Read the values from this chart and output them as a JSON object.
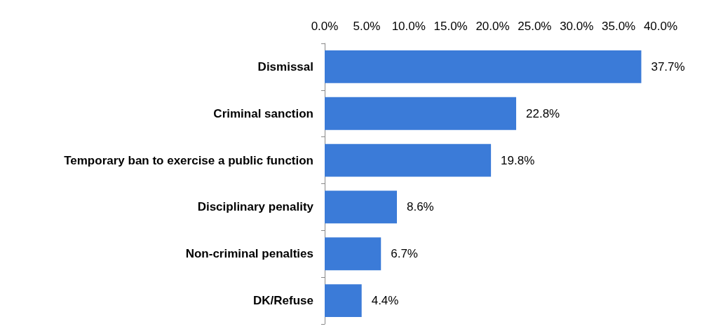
{
  "chart_data": {
    "type": "bar",
    "orientation": "horizontal",
    "categories": [
      "Dismissal",
      "Criminal sanction",
      "Temporary ban to exercise a public function",
      "Disciplinary penality",
      "Non-criminal penalties",
      "DK/Refuse"
    ],
    "values": [
      37.7,
      22.8,
      19.8,
      8.6,
      6.7,
      4.4
    ],
    "value_labels": [
      "37.7%",
      "22.8%",
      "19.8%",
      "8.6%",
      "6.7%",
      "4.4%"
    ],
    "color": "#3b7bd8",
    "xlim": [
      0,
      40
    ],
    "xticks": [
      {
        "value": 0,
        "label": "0.0%"
      },
      {
        "value": 5,
        "label": "5.0%"
      },
      {
        "value": 10,
        "label": "10.0%"
      },
      {
        "value": 15,
        "label": "15.0%"
      },
      {
        "value": 20,
        "label": "20.0%"
      },
      {
        "value": 25,
        "label": "25.0%"
      },
      {
        "value": 30,
        "label": "30.0%"
      },
      {
        "value": 35,
        "label": "35.0%"
      },
      {
        "value": 40,
        "label": "40.0%"
      }
    ],
    "grid": false
  }
}
